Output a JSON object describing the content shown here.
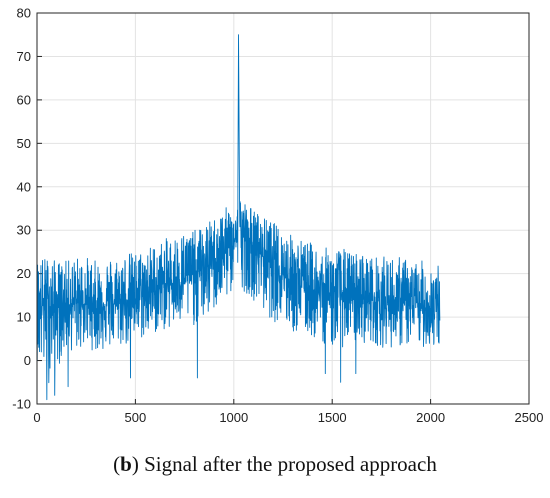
{
  "caption": {
    "panel_letter": "b",
    "text": "Signal after the proposed approach"
  },
  "chart_data": {
    "type": "line",
    "title": "",
    "xlabel": "",
    "ylabel": "",
    "xlim": [
      0,
      2500
    ],
    "ylim": [
      -10,
      80
    ],
    "xticks": [
      0,
      500,
      1000,
      1500,
      2000,
      2500
    ],
    "yticks": [
      -10,
      0,
      10,
      20,
      30,
      40,
      50,
      60,
      70,
      80
    ],
    "grid": true,
    "series": [
      {
        "color": "#0072BD",
        "n_points": 2048,
        "x": [
          0,
          50,
          100,
          150,
          200,
          250,
          300,
          350,
          400,
          450,
          500,
          550,
          600,
          650,
          700,
          750,
          800,
          850,
          900,
          950,
          1000,
          1020,
          1024,
          1030,
          1050,
          1100,
          1150,
          1200,
          1250,
          1300,
          1350,
          1400,
          1450,
          1500,
          1550,
          1600,
          1650,
          1700,
          1750,
          1800,
          1850,
          1900,
          1950,
          2000,
          2047
        ],
        "y": [
          12,
          13,
          12,
          13,
          13,
          13,
          12,
          13,
          13,
          14,
          14,
          15,
          16,
          17,
          18,
          19,
          20,
          21,
          23,
          25,
          27,
          30,
          75,
          31,
          28,
          26,
          24,
          22,
          20,
          18,
          17,
          16,
          15,
          15,
          15,
          14,
          14,
          14,
          13,
          13,
          13,
          13,
          12,
          12,
          12
        ],
        "envelope_max": [
          24,
          24,
          23,
          23,
          24,
          24,
          23,
          24,
          24,
          25,
          25,
          26,
          27,
          28,
          29,
          30,
          30,
          31,
          33,
          35,
          36,
          37,
          75,
          38,
          37,
          35,
          33,
          32,
          30,
          29,
          28,
          27,
          26,
          26,
          26,
          25,
          25,
          24,
          24,
          24,
          24,
          23,
          23,
          23,
          22
        ],
        "envelope_min": [
          0,
          -6,
          -2,
          2,
          2,
          3,
          2,
          2,
          3,
          3,
          4,
          5,
          6,
          7,
          7,
          8,
          8,
          9,
          11,
          13,
          16,
          19,
          19,
          18,
          16,
          14,
          11,
          9,
          8,
          6,
          6,
          5,
          4,
          3,
          3,
          4,
          4,
          4,
          3,
          3,
          3,
          3,
          3,
          3,
          2
        ],
        "outlier_dips": [
          {
            "x": 50,
            "y": -9
          },
          {
            "x": 90,
            "y": -8
          },
          {
            "x": 158,
            "y": -6
          },
          {
            "x": 475,
            "y": -4
          },
          {
            "x": 815,
            "y": -4
          },
          {
            "x": 1465,
            "y": -3
          },
          {
            "x": 1543,
            "y": -5
          },
          {
            "x": 1620,
            "y": -3
          }
        ]
      }
    ]
  }
}
